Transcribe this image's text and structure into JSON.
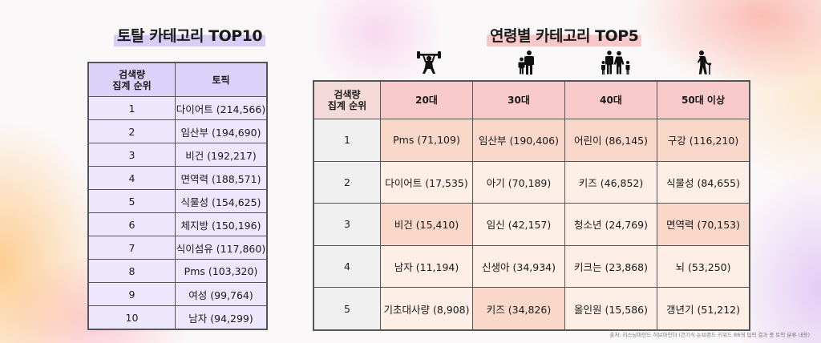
{
  "left": {
    "title": "토탈 카테고리 TOP10",
    "header": {
      "rank_line1": "검색량",
      "rank_line2": "집계 순위",
      "topic": "토픽"
    },
    "rows": [
      {
        "rank": "1",
        "topic": "다이어트 (214,566)"
      },
      {
        "rank": "2",
        "topic": "임산부 (194,690)"
      },
      {
        "rank": "3",
        "topic": "비건 (192,217)"
      },
      {
        "rank": "4",
        "topic": "면역력 (188,571)"
      },
      {
        "rank": "5",
        "topic": "식물성 (154,625)"
      },
      {
        "rank": "6",
        "topic": "체지방 (150,196)"
      },
      {
        "rank": "7",
        "topic": "식이섬유 (117,860)"
      },
      {
        "rank": "8",
        "topic": "Pms (103,320)"
      },
      {
        "rank": "9",
        "topic": "여성 (99,764)"
      },
      {
        "rank": "10",
        "topic": "남자 (94,299)"
      }
    ]
  },
  "right": {
    "title": "연령별 카테고리 TOP5",
    "header": {
      "rank_line1": "검색량",
      "rank_line2": "집계 순위",
      "ages": [
        "20대",
        "30대",
        "40대",
        "50대 이상"
      ]
    },
    "age_icons": [
      "weightlifting-icon",
      "parent-child-icon",
      "family-icon",
      "elderly-icon"
    ],
    "rows": [
      {
        "rank": "1",
        "cells": [
          "Pms (71,109)",
          "임산부 (190,406)",
          "어린이 (86,145)",
          "구강 (116,210)"
        ]
      },
      {
        "rank": "2",
        "cells": [
          "다이어트 (17,535)",
          "아기 (70,189)",
          "키즈 (46,852)",
          "식물성 (84,655)"
        ]
      },
      {
        "rank": "3",
        "cells": [
          "비건 (15,410)",
          "임신 (42,157)",
          "청소년 (24,769)",
          "면역력 (70,153)"
        ]
      },
      {
        "rank": "4",
        "cells": [
          "남자 (11,194)",
          "신생아 (34,934)",
          "키크는 (23,868)",
          "뇌 (53,250)"
        ]
      },
      {
        "rank": "5",
        "cells": [
          "기초대사량 (8,908)",
          "키즈 (34,826)",
          "올인원 (15,586)",
          "갱년기 (51,212)"
        ]
      }
    ]
  },
  "colors": {
    "left_header": "#dcd1f9",
    "left_cell": "#ece7fd",
    "right_header": "#f8caca",
    "right_highlight": "#f9d7c9",
    "right_plain": "#fdeee6"
  },
  "footnote": "출처: 리스닝마인드 허브파인더 (건기식 논브랜드 키워드 88개 입력 결과 중 토픽 분류 내용)"
}
